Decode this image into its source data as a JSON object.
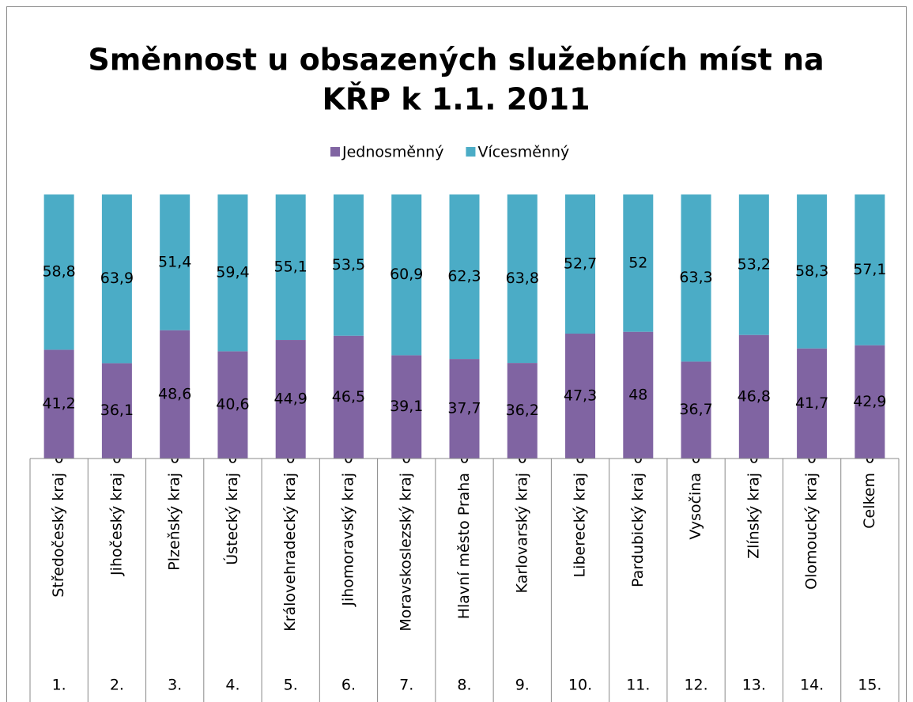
{
  "chart_data": {
    "type": "stacked_bar_percent",
    "title": [
      "Směnnost u obsazených služebních míst na",
      "KŘP k 1.1. 2011"
    ],
    "categories": [
      "Středočeský kraj",
      "Jihočeský kraj",
      "Plzeňský kraj",
      "Ústecký kraj",
      "Královehradecký kraj",
      "Jihomoravský kraj",
      "Moravskoslezský kraj",
      "Hlavní město Praha",
      "Karlovarský kraj",
      "Liberecký kraj",
      "Pardubický kraj",
      "Vysočina",
      "Zlínský kraj",
      "Olomoucký kraj",
      "Celkem"
    ],
    "category_numbers": [
      "1.",
      "2.",
      "3.",
      "4.",
      "5.",
      "6.",
      "7.",
      "8.",
      "9.",
      "10.",
      "11.",
      "12.",
      "13.",
      "14.",
      "15."
    ],
    "ylim": [
      0,
      100
    ],
    "legend": "top",
    "series": [
      {
        "values": [
          0,
          0,
          0,
          0,
          0,
          0,
          0,
          0,
          0,
          0,
          0,
          0,
          0,
          0,
          0
        ]
      },
      {
        "name": "Jednosměnný",
        "color": "#8064a2",
        "values": [
          41.2,
          36.1,
          48.6,
          40.6,
          44.9,
          46.5,
          39.1,
          37.7,
          36.2,
          47.3,
          48,
          36.7,
          46.8,
          41.7,
          42.9
        ],
        "value_labels": [
          "41,2",
          "36,1",
          "48,6",
          "40,6",
          "44,9",
          "46,5",
          "39,1",
          "37,7",
          "36,2",
          "47,3",
          "48",
          "36,7",
          "46,8",
          "41,7",
          "42,9"
        ]
      },
      {
        "name": "Vícesměnný",
        "color": "#4bacc6",
        "values": [
          58.8,
          63.9,
          51.4,
          59.4,
          55.1,
          53.5,
          60.9,
          62.3,
          63.8,
          52.7,
          52,
          63.3,
          53.2,
          58.3,
          57.1
        ],
        "value_labels": [
          "58,8",
          "63,9",
          "51,4",
          "59,4",
          "55,1",
          "53,5",
          "60,9",
          "62,3",
          "63,8",
          "52,7",
          "52",
          "63,3",
          "53,2",
          "58,3",
          "57,1"
        ]
      }
    ]
  }
}
